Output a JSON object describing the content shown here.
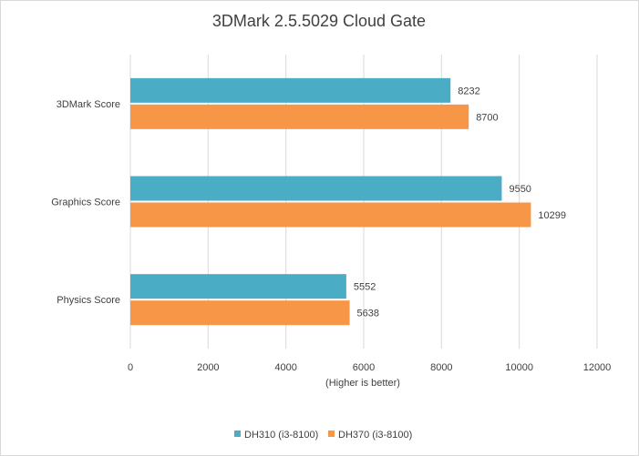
{
  "chart_data": {
    "type": "bar",
    "orientation": "horizontal",
    "title": "3DMark 2.5.5029 Cloud Gate",
    "xlabel": "(Higher is better)",
    "ylabel": "",
    "categories": [
      "3DMark Score",
      "Graphics Score",
      "Physics Score"
    ],
    "series": [
      {
        "name": "DH310 (i3-8100)",
        "color": "#4bacc6",
        "values": [
          8232,
          9550,
          5552
        ]
      },
      {
        "name": "DH370 (i3-8100)",
        "color": "#f79646",
        "values": [
          8700,
          10299,
          5638
        ]
      }
    ],
    "xlim": [
      0,
      12000
    ],
    "xticks": [
      0,
      2000,
      4000,
      6000,
      8000,
      10000,
      12000
    ],
    "grid": true,
    "legend_position": "bottom"
  }
}
